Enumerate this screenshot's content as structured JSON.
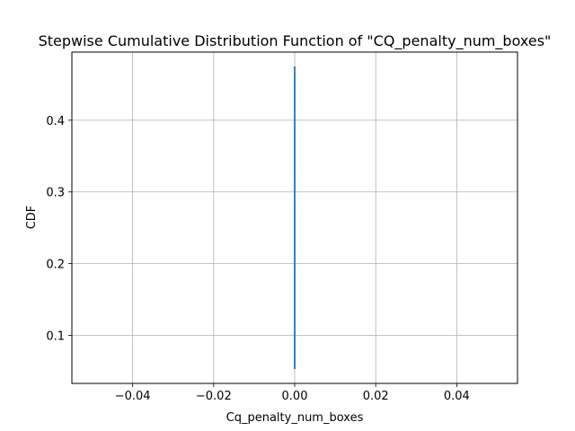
{
  "chart_data": {
    "type": "line",
    "title": "Stepwise Cumulative Distribution Function of \"CQ_penalty_num_boxes\"",
    "xlabel": "Cq_penalty_num_boxes",
    "ylabel": "CDF",
    "xlim": [
      -0.055,
      0.055
    ],
    "ylim": [
      0.033,
      0.495
    ],
    "xticks": [
      -0.04,
      -0.02,
      0.0,
      0.02,
      0.04
    ],
    "xtick_labels": [
      "−0.04",
      "−0.02",
      "0.00",
      "0.02",
      "0.04"
    ],
    "yticks": [
      0.1,
      0.2,
      0.3,
      0.4
    ],
    "ytick_labels": [
      "0.1",
      "0.2",
      "0.3",
      "0.4"
    ],
    "grid": true,
    "series": [
      {
        "x": [
          0.0,
          0.0
        ],
        "y": [
          0.053,
          0.475
        ],
        "color": "#1f77b4"
      }
    ]
  }
}
